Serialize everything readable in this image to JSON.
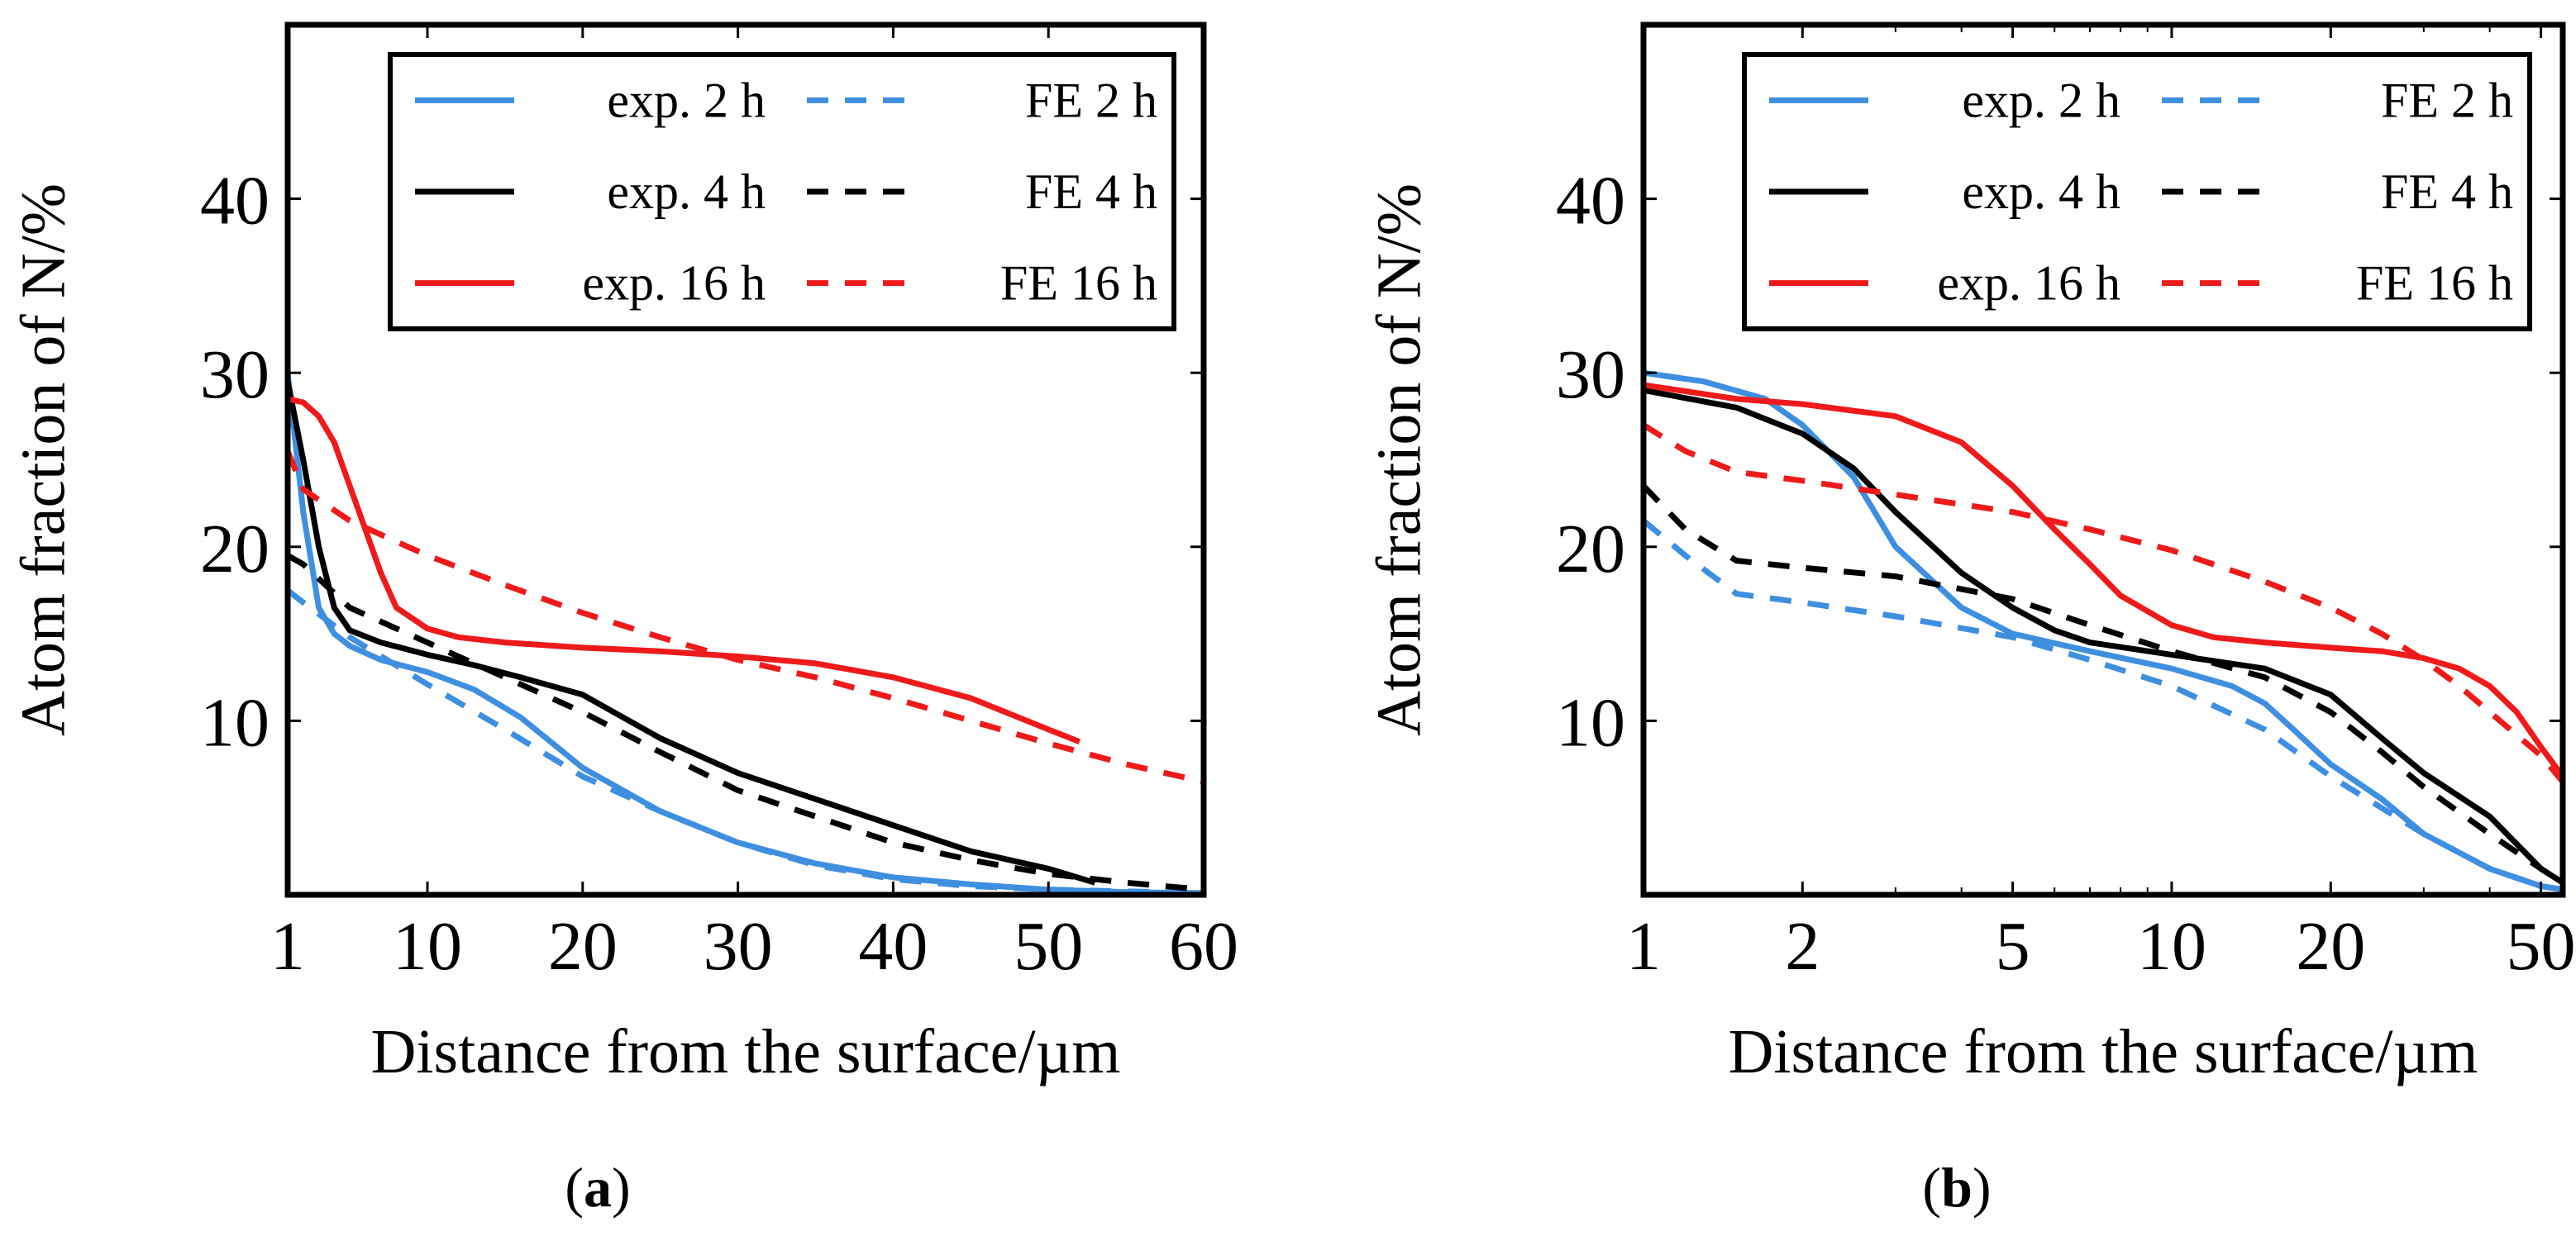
{
  "colors": {
    "blue": "#3f8fe0",
    "black": "#000000",
    "red": "#f01a1a"
  },
  "legend": [
    {
      "label": "exp. 2 h",
      "color": "#3f8fe0",
      "dashed": false
    },
    {
      "label": "FE 2 h",
      "color": "#3f8fe0",
      "dashed": true
    },
    {
      "label": "exp. 4 h",
      "color": "#000000",
      "dashed": false
    },
    {
      "label": "FE 4 h",
      "color": "#000000",
      "dashed": true
    },
    {
      "label": "exp. 16 h",
      "color": "#f01a1a",
      "dashed": false
    },
    {
      "label": "FE 16 h",
      "color": "#f01a1a",
      "dashed": true
    }
  ],
  "captions": {
    "a": "a",
    "b": "b"
  },
  "chart_data": [
    {
      "id": "a",
      "type": "line",
      "xscale": "linear",
      "xlabel": "Distance from the surface/µm",
      "ylabel": "Atom fraction of N/%",
      "xlim": [
        1,
        60
      ],
      "ylim": [
        0,
        50
      ],
      "xticks": [
        1,
        10,
        20,
        30,
        40,
        50,
        60
      ],
      "yticks": [
        10,
        20,
        30,
        40
      ],
      "legend_position": "top-right",
      "series": [
        {
          "name": "exp. 2 h",
          "color": "#3f8fe0",
          "dashed": false,
          "x": [
            1,
            2,
            3,
            4,
            5,
            7,
            10,
            13,
            16,
            20,
            25,
            30,
            35,
            40,
            45,
            50,
            55,
            60
          ],
          "y": [
            30,
            22,
            16.5,
            15,
            14.3,
            13.5,
            12.8,
            11.8,
            10.2,
            7.3,
            4.8,
            3.0,
            1.8,
            1.0,
            0.6,
            0.3,
            0.15,
            0.1
          ]
        },
        {
          "name": "FE 2 h",
          "color": "#3f8fe0",
          "dashed": true,
          "x": [
            1,
            2,
            5,
            10,
            15,
            20,
            25,
            30,
            35,
            40,
            45,
            50,
            55,
            60
          ],
          "y": [
            17.5,
            16.8,
            14.8,
            12.1,
            9.5,
            6.8,
            4.8,
            3.0,
            1.7,
            0.9,
            0.5,
            0.3,
            0.2,
            0.1
          ]
        },
        {
          "name": "exp. 4 h",
          "color": "#000000",
          "dashed": false,
          "x": [
            1,
            2,
            3,
            4,
            5,
            7,
            10,
            13,
            16,
            20,
            25,
            30,
            35,
            40,
            45,
            50,
            53
          ],
          "y": [
            29.5,
            25,
            20,
            16.5,
            15.2,
            14.5,
            13.8,
            13.2,
            12.5,
            11.5,
            9.0,
            7.0,
            5.5,
            4.0,
            2.5,
            1.5,
            0.7
          ]
        },
        {
          "name": "FE 4 h",
          "color": "#000000",
          "dashed": true,
          "x": [
            1,
            2,
            5,
            10,
            15,
            20,
            25,
            30,
            35,
            40,
            45,
            50,
            55,
            60
          ],
          "y": [
            19.5,
            19,
            16.5,
            14.5,
            12.5,
            10.5,
            8.2,
            6.0,
            4.5,
            3.0,
            2.0,
            1.2,
            0.7,
            0.3
          ]
        },
        {
          "name": "exp. 16 h",
          "color": "#f01a1a",
          "dashed": false,
          "x": [
            1,
            2,
            3,
            4,
            5,
            6,
            7,
            8,
            10,
            12,
            15,
            20,
            25,
            30,
            35,
            40,
            45,
            50,
            52
          ],
          "y": [
            28.5,
            28.3,
            27.5,
            26,
            23.5,
            21,
            18.5,
            16.5,
            15.3,
            14.8,
            14.5,
            14.2,
            14.0,
            13.7,
            13.3,
            12.5,
            11.3,
            9.5,
            8.8
          ]
        },
        {
          "name": "FE 16 h",
          "color": "#f01a1a",
          "dashed": true,
          "x": [
            1,
            2,
            5,
            10,
            15,
            20,
            25,
            30,
            35,
            40,
            45,
            50,
            55,
            60
          ],
          "y": [
            25.5,
            23.3,
            21.5,
            19.5,
            17.8,
            16.2,
            14.8,
            13.5,
            12.5,
            11.3,
            10.0,
            8.7,
            7.5,
            6.5
          ]
        }
      ]
    },
    {
      "id": "b",
      "type": "line",
      "xscale": "log",
      "xlabel": "Distance from the surface/µm",
      "ylabel": "Atom fraction of N/%",
      "xlim": [
        1,
        55
      ],
      "ylim": [
        0,
        50
      ],
      "xticks": [
        1,
        2,
        5,
        10,
        20,
        50
      ],
      "yticks": [
        10,
        20,
        30,
        40
      ],
      "legend_position": "top-right",
      "series": [
        {
          "name": "exp. 2 h",
          "color": "#3f8fe0",
          "dashed": false,
          "x": [
            1,
            1.3,
            1.7,
            2,
            2.5,
            3,
            4,
            5,
            7,
            10,
            13,
            15,
            17,
            20,
            25,
            30,
            40,
            50,
            55
          ],
          "y": [
            30,
            29.5,
            28.5,
            27,
            24,
            20,
            16.5,
            15.0,
            14.0,
            13.0,
            12.0,
            11.0,
            9.5,
            7.5,
            5.5,
            3.5,
            1.5,
            0.5,
            0.3
          ]
        },
        {
          "name": "FE 2 h",
          "color": "#3f8fe0",
          "dashed": true,
          "x": [
            1,
            1.2,
            1.5,
            2,
            3,
            5,
            7,
            10,
            15,
            20,
            30,
            40,
            50,
            55
          ],
          "y": [
            21.5,
            19.5,
            17.3,
            16.8,
            16.0,
            14.8,
            13.5,
            12.0,
            9.5,
            6.8,
            3.5,
            1.5,
            0.5,
            0.3
          ]
        },
        {
          "name": "exp. 4 h",
          "color": "#000000",
          "dashed": false,
          "x": [
            1,
            1.5,
            2,
            2.5,
            3,
            4,
            5,
            6,
            7,
            10,
            15,
            20,
            25,
            30,
            40,
            50,
            55
          ],
          "y": [
            29,
            28,
            26.5,
            24.5,
            22,
            18.5,
            16.5,
            15.2,
            14.5,
            13.8,
            13.0,
            11.5,
            9.0,
            7.0,
            4.5,
            1.5,
            0.7
          ]
        },
        {
          "name": "FE 4 h",
          "color": "#000000",
          "dashed": true,
          "x": [
            1,
            1.2,
            1.5,
            2,
            3,
            5,
            7,
            10,
            15,
            20,
            25,
            30,
            40,
            50,
            55
          ],
          "y": [
            23.5,
            21,
            19.2,
            18.8,
            18.3,
            17.0,
            15.5,
            14.0,
            12.5,
            10.5,
            8.2,
            6.2,
            3.5,
            1.5,
            0.7
          ]
        },
        {
          "name": "exp. 16 h",
          "color": "#f01a1a",
          "dashed": false,
          "x": [
            1,
            1.5,
            2,
            3,
            4,
            5,
            6,
            7,
            8,
            10,
            12,
            15,
            20,
            25,
            30,
            35,
            40,
            45,
            50,
            55
          ],
          "y": [
            29.3,
            28.5,
            28.2,
            27.5,
            26,
            23.5,
            21,
            19,
            17.2,
            15.5,
            14.8,
            14.5,
            14.2,
            14.0,
            13.6,
            13.0,
            12.0,
            10.5,
            8.5,
            6.8
          ]
        },
        {
          "name": "FE 16 h",
          "color": "#f01a1a",
          "dashed": true,
          "x": [
            1,
            1.2,
            1.5,
            2,
            3,
            5,
            7,
            10,
            15,
            20,
            25,
            30,
            35,
            40,
            50,
            55
          ],
          "y": [
            27,
            25.5,
            24.3,
            23.8,
            23.0,
            22.0,
            21.0,
            19.8,
            18.0,
            16.5,
            15.0,
            13.5,
            12.0,
            10.5,
            8.0,
            6.5
          ]
        }
      ]
    }
  ]
}
